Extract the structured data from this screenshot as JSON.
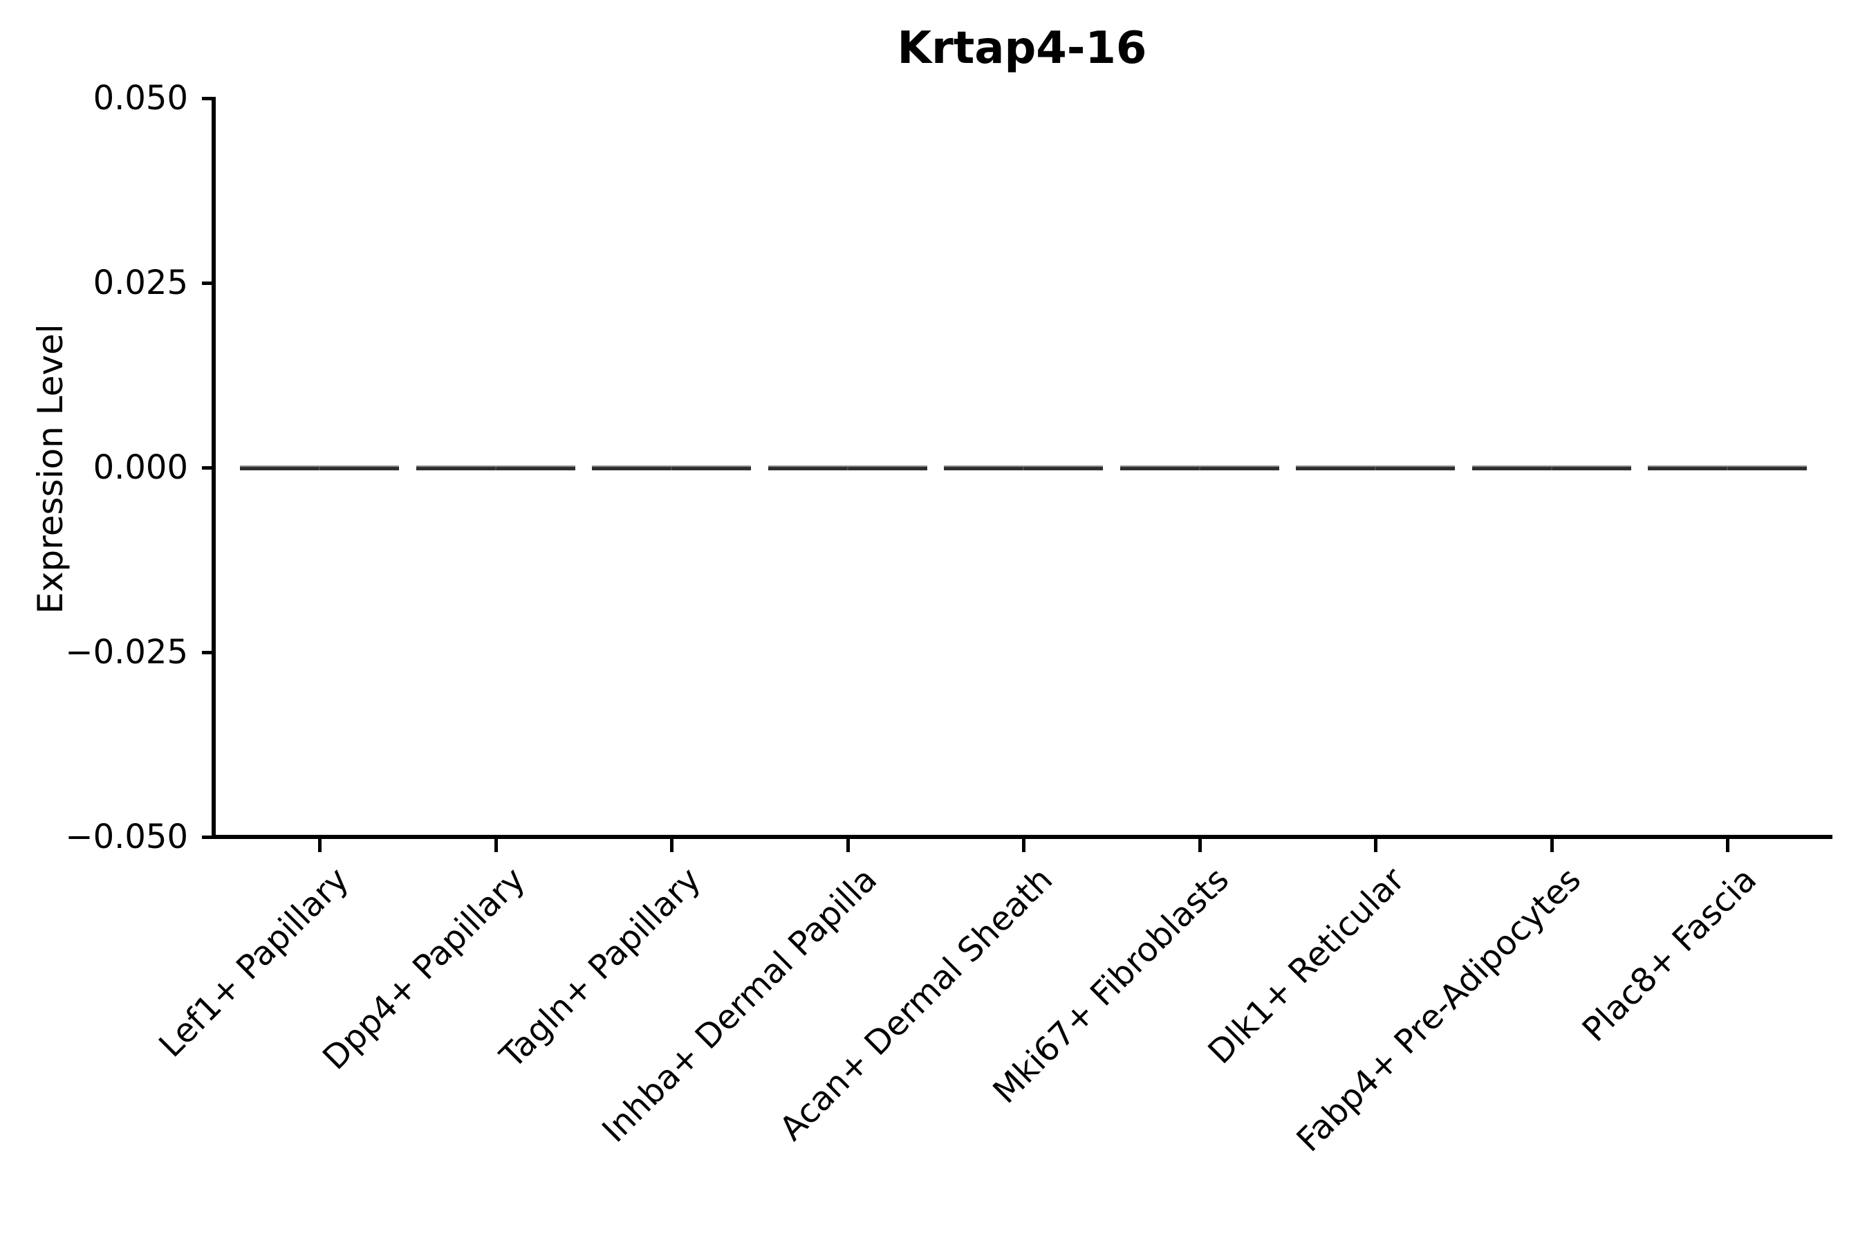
{
  "figure": {
    "title": "Krtap4-16",
    "ylabel": "Expression Level"
  },
  "colors": {
    "background": "#ffffff",
    "axis": "#000000",
    "text": "#000000",
    "violin_line": "#2e2e2e",
    "violin_edge_highlight": "#8a8a8a"
  },
  "chart_data": {
    "type": "violin",
    "title": "Krtap4-16",
    "xlabel": "",
    "ylabel": "Expression Level",
    "categories": [
      "Lef1+ Papillary",
      "Dpp4+ Papillary",
      "Tagln+ Papillary",
      "Inhba+ Dermal Papilla",
      "Acan+ Dermal Sheath",
      "Mki67+ Fibroblasts",
      "Dlk1+ Reticular",
      "Fabp4+ Pre-Adipocytes",
      "Plac8+ Fascia"
    ],
    "series": [
      {
        "name": "Expression Level",
        "values": [
          0.0,
          0.0,
          0.0,
          0.0,
          0.0,
          0.0,
          0.0,
          0.0,
          0.0
        ]
      }
    ],
    "ylim": [
      -0.05,
      0.05
    ],
    "yticks": [
      0.05,
      0.025,
      0.0,
      -0.025,
      -0.05
    ],
    "ytick_labels": [
      "0.050",
      "0.025",
      "0.000",
      "−0.025",
      "−0.050"
    ],
    "xtick_rotation_deg": 45,
    "grid": false,
    "legend": "none",
    "note": "All violins are collapsed to flat horizontal lines at expression level 0"
  }
}
